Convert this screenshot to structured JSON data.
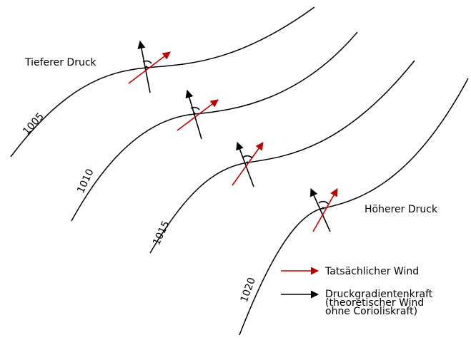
{
  "regions": {
    "low": "Tieferer Druck",
    "high": "Höherer Druck"
  },
  "isobars": [
    {
      "label": "1005"
    },
    {
      "label": "1010"
    },
    {
      "label": "1015"
    },
    {
      "label": "1020"
    }
  ],
  "legend": [
    {
      "label": "Tatsächlicher Wind"
    },
    {
      "lines": [
        "Druckgradientenkraft",
        "(theoretischer Wind",
        "ohne Corioliskraft)"
      ]
    }
  ]
}
